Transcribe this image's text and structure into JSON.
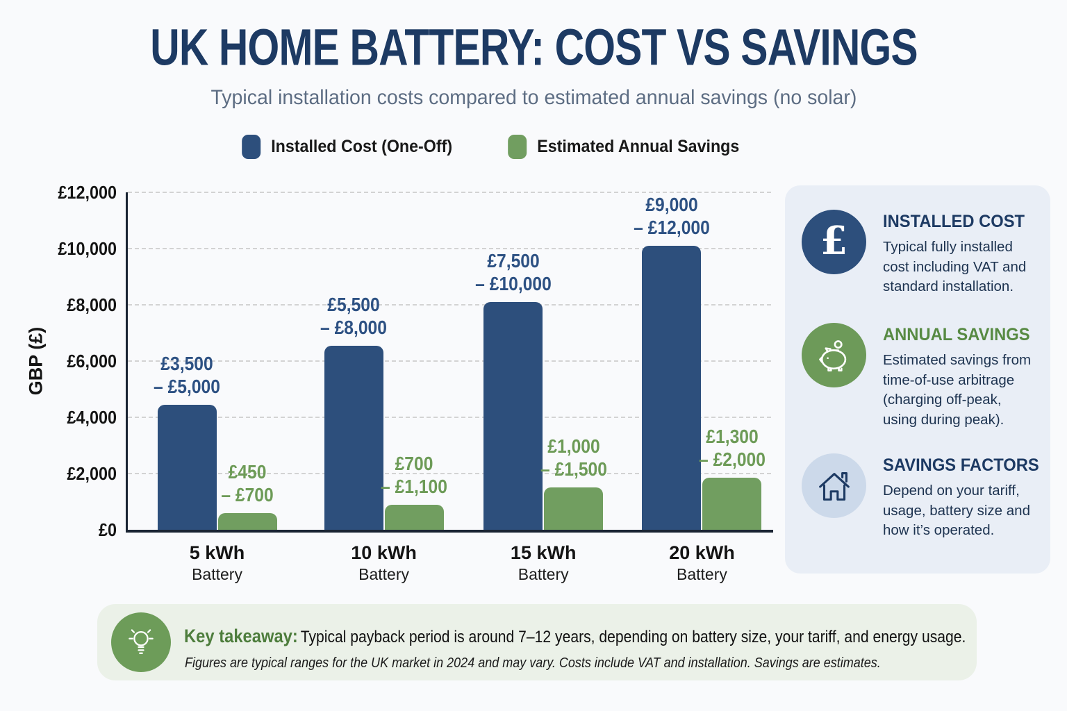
{
  "header": {
    "title": "UK HOME BATTERY: COST VS SAVINGS",
    "subtitle": "Typical installation costs compared to estimated annual savings (no solar)"
  },
  "legend": {
    "items": [
      {
        "label": "Installed Cost (One-Off)",
        "color": "#2d4f7c"
      },
      {
        "label": "Estimated Annual Savings",
        "color": "#719e60"
      }
    ]
  },
  "chart_data": {
    "type": "bar",
    "title": "UK Home Battery: Cost vs Savings",
    "ylabel": "GBP (£)",
    "ylim": [
      0,
      12000
    ],
    "grid": "horizontal-dashed",
    "legend_position": "top",
    "yticks": [
      {
        "label": "£12,000",
        "value": 12000
      },
      {
        "label": "£10,000",
        "value": 10000
      },
      {
        "label": "£8,000",
        "value": 8000
      },
      {
        "label": "£6,000",
        "value": 6000
      },
      {
        "label": "£4,000",
        "value": 4000
      },
      {
        "label": "£2,000",
        "value": 2000
      },
      {
        "label": "£0",
        "value": 0
      }
    ],
    "categories": [
      {
        "label": "5 kWh",
        "sublabel": "Battery"
      },
      {
        "label": "10 kWh",
        "sublabel": "Battery"
      },
      {
        "label": "15 kWh",
        "sublabel": "Battery"
      },
      {
        "label": "20 kWh",
        "sublabel": "Battery"
      }
    ],
    "series": [
      {
        "name": "Installed Cost (One-Off)",
        "color": "#2d4f7c",
        "label_color": "#2d5183",
        "values": [
          4450,
          6550,
          8100,
          10100
        ],
        "range_labels": [
          [
            "£3,500",
            "– £5,000"
          ],
          [
            "£5,500",
            "– £8,000"
          ],
          [
            "£7,500",
            "– £10,000"
          ],
          [
            "£9,000",
            "– £12,000"
          ]
        ]
      },
      {
        "name": "Estimated Annual Savings",
        "color": "#719e60",
        "label_color": "#6d9b57",
        "values": [
          600,
          900,
          1500,
          1850
        ],
        "range_labels": [
          [
            "£450",
            "– £700"
          ],
          [
            "£700",
            "– £1,100"
          ],
          [
            "£1,000",
            "– £1,500"
          ],
          [
            "£1,300",
            "– £2,000"
          ]
        ]
      }
    ]
  },
  "sidebar": {
    "cards": [
      {
        "icon": "pound-sign",
        "icon_bg": "#2d4f7c",
        "heading": "INSTALLED COST",
        "heading_color": "#1d3a63",
        "body": "Typical fully installed cost including VAT and standard installation."
      },
      {
        "icon": "piggy-bank",
        "icon_bg": "#6d9a59",
        "heading": "ANNUAL SAVINGS",
        "heading_color": "#578a43",
        "body": "Estimated savings from time-of-use arbitrage (charging off-peak, using during peak)."
      },
      {
        "icon": "house",
        "icon_bg": "#ccd9ea",
        "heading": "SAVINGS FACTORS",
        "heading_color": "#1d3a63",
        "body": "Depend on your tariff, usage, battery size and how it’s operated."
      }
    ]
  },
  "takeaway": {
    "icon": "lightbulb",
    "heading": "Key takeaway:",
    "text": "Typical payback period is around 7–12 years, depending on battery size, your tariff, and energy usage.",
    "footnote": "Figures are typical ranges for the UK market in 2024 and may vary. Costs include VAT and installation. Savings are estimates."
  }
}
